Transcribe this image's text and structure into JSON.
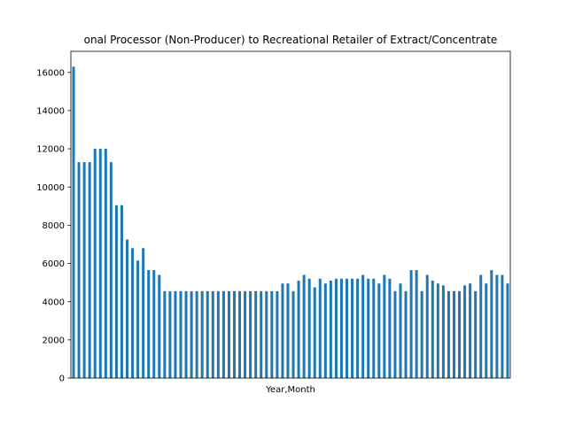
{
  "chart_data": {
    "type": "bar",
    "title": "onal Processor (Non-Producer) to Recreational Retailer of Extract/Concentrate",
    "xlabel": "Year,Month",
    "ylabel": "",
    "ylim": [
      0,
      17100
    ],
    "yticks": [
      0,
      2000,
      4000,
      6000,
      8000,
      10000,
      12000,
      14000,
      16000
    ],
    "ytick_labels": [
      "0",
      "2000",
      "4000",
      "6000",
      "8000",
      "10000",
      "12000",
      "14000",
      "16000"
    ],
    "grid": false,
    "legend": "none",
    "bar_color": "#1f77b4",
    "values": [
      16300,
      11300,
      11300,
      11300,
      12000,
      12000,
      12000,
      11300,
      9050,
      9050,
      7250,
      6800,
      6150,
      6800,
      5650,
      5650,
      5400,
      4550,
      4550,
      4550,
      4550,
      4550,
      4550,
      4550,
      4550,
      4550,
      4550,
      4550,
      4550,
      4550,
      4550,
      4550,
      4550,
      4550,
      4550,
      4550,
      4550,
      4550,
      4550,
      4950,
      4950,
      4550,
      5100,
      5400,
      5200,
      4750,
      5200,
      4950,
      5100,
      5200,
      5200,
      5200,
      5200,
      5200,
      5400,
      5200,
      5200,
      4950,
      5400,
      5200,
      4550,
      4950,
      4550,
      5650,
      5650,
      4550,
      5400,
      5100,
      4950,
      4850,
      4550,
      4550,
      4550,
      4850,
      4950,
      4550,
      5400,
      4950,
      5650,
      5400,
      5400,
      4950
    ]
  }
}
